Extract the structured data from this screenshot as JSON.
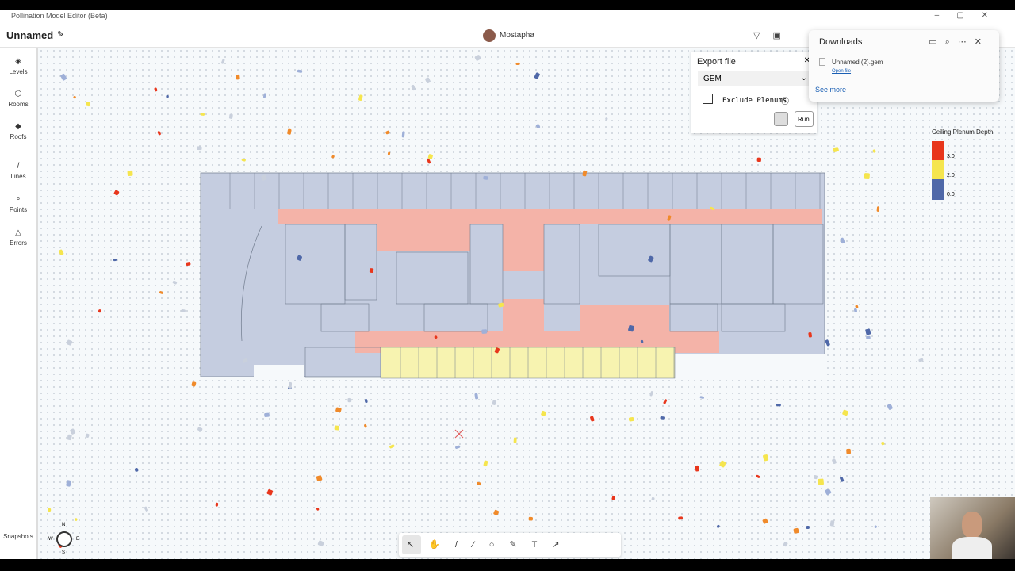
{
  "window": {
    "title": "Pollination Model Editor (Beta)"
  },
  "header": {
    "model_name": "Unnamed",
    "user": "Mostapha"
  },
  "sidebar": {
    "items": [
      "Levels",
      "Rooms",
      "Roofs",
      "Lines",
      "Points",
      "Errors"
    ],
    "bottom": "Snapshots"
  },
  "export_panel": {
    "title": "Export file",
    "format": "GEM",
    "checkbox": "Exclude Plenums",
    "run": "Run"
  },
  "downloads": {
    "title": "Downloads",
    "file": "Unnamed (2).gem",
    "open": "Open file",
    "more": "See more"
  },
  "legend": {
    "title": "Ceiling Plenum Depth",
    "labels": [
      "3.0",
      "2.0",
      "0.0"
    ]
  },
  "compass": {
    "n": "N",
    "s": "S",
    "w": "W",
    "e": "E"
  }
}
